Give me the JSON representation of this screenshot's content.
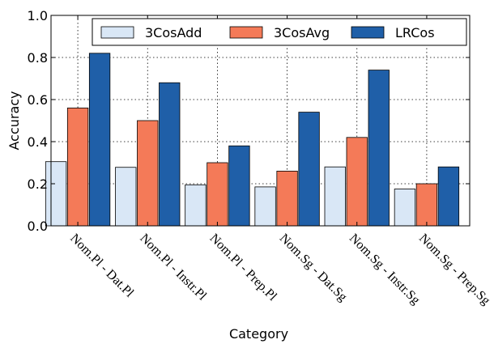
{
  "chart_data": {
    "type": "bar",
    "title": "",
    "xlabel": "Category",
    "ylabel": "Accuracy",
    "ylim": [
      0,
      1.0
    ],
    "yticks": [
      "0.0",
      "0.2",
      "0.4",
      "0.6",
      "0.8",
      "1.0"
    ],
    "grid": true,
    "legend_position": "top-right",
    "categories": [
      "Nom.Pl - Dat.Pl",
      "Nom.Pl - Instr.Pl",
      "Nom.Pl - Prep.Pl",
      "Nom.Sg - Dat.Sg",
      "Nom.Sg - Instr.Sg",
      "Nom.Sg - Prep.Sg"
    ],
    "series": [
      {
        "name": "3CosAdd",
        "color": "#d9e7f6",
        "values": [
          0.305,
          0.278,
          0.195,
          0.185,
          0.28,
          0.175
        ]
      },
      {
        "name": "3CosAvg",
        "color": "#f47a58",
        "values": [
          0.56,
          0.5,
          0.3,
          0.26,
          0.42,
          0.2
        ]
      },
      {
        "name": "LRCos",
        "color": "#1f5fa8",
        "values": [
          0.82,
          0.68,
          0.38,
          0.54,
          0.74,
          0.28
        ]
      }
    ]
  }
}
